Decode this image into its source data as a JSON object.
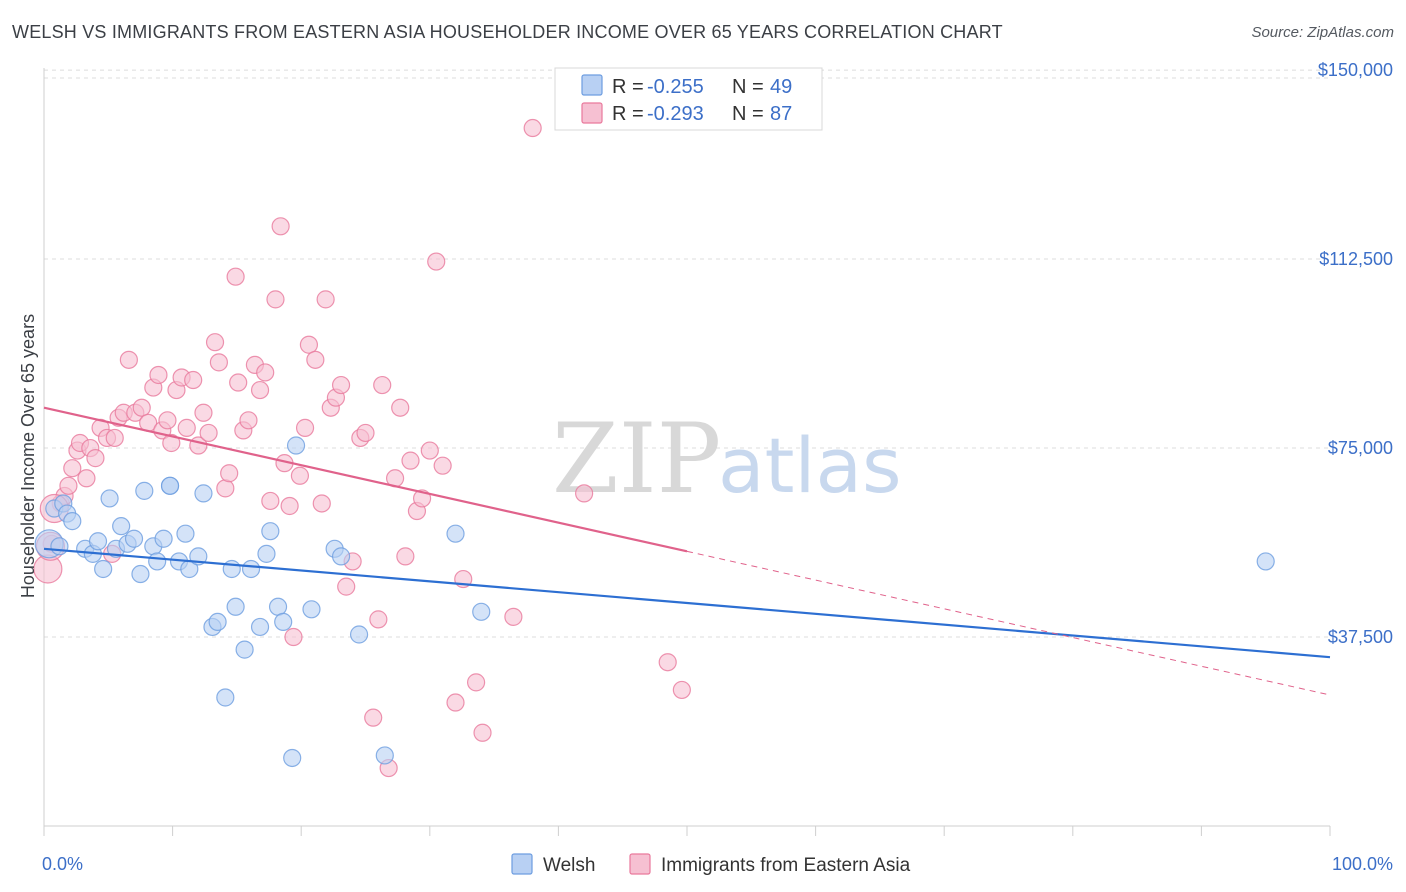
{
  "title": "WELSH VS IMMIGRANTS FROM EASTERN ASIA HOUSEHOLDER INCOME OVER 65 YEARS CORRELATION CHART",
  "source": "Source: ZipAtlas.com",
  "watermark": {
    "zip": "ZIP",
    "atlas": "atlas"
  },
  "colors": {
    "welsh": "#6d9de0",
    "welsh_fill": "#b8d0f3",
    "eastern_asia": "#e9799c",
    "eastern_asia_fill": "#f6c0d2",
    "axis_text": "#3c6fc8",
    "welsh_line": "#2d6fd2",
    "asia_line": "#e0628b"
  },
  "legend": {
    "welsh": {
      "r_label": "R = ",
      "r": "-0.255",
      "n_label": "N = ",
      "n": "49"
    },
    "asia": {
      "r_label": "R = ",
      "r": "-0.293",
      "n_label": "N = ",
      "n": "87"
    }
  },
  "chart_data": {
    "type": "scatter",
    "ylabel": "Householder Income Over 65 years",
    "x_tick_labels": [
      "0.0%",
      "100.0%"
    ],
    "xlim": [
      0,
      100
    ],
    "ylim": [
      0,
      152000
    ],
    "y_ticks": [
      37500,
      75000,
      112500,
      150000
    ],
    "y_tick_labels": [
      "$37,500",
      "$75,000",
      "$112,500",
      "$150,000"
    ],
    "grid": true,
    "legend_position": "top-center",
    "series": [
      {
        "name": "Welsh",
        "trend": {
          "x": [
            0,
            100
          ],
          "y": [
            55000,
            33500
          ]
        },
        "points": [
          [
            0.4,
            56000
          ],
          [
            0.8,
            63000
          ],
          [
            1.5,
            64000
          ],
          [
            1.8,
            62000
          ],
          [
            2.2,
            60500
          ],
          [
            3.2,
            55000
          ],
          [
            3.8,
            54000
          ],
          [
            4.2,
            56500
          ],
          [
            4.6,
            51000
          ],
          [
            5.1,
            65000
          ],
          [
            5.6,
            55000
          ],
          [
            6.0,
            59500
          ],
          [
            6.5,
            56000
          ],
          [
            7.0,
            57000
          ],
          [
            7.5,
            50000
          ],
          [
            7.8,
            66500
          ],
          [
            8.5,
            55500
          ],
          [
            8.8,
            52500
          ],
          [
            9.3,
            57000
          ],
          [
            9.8,
            67500
          ],
          [
            10.5,
            52500
          ],
          [
            11.0,
            58000
          ],
          [
            11.3,
            51000
          ],
          [
            12.0,
            53500
          ],
          [
            12.4,
            66000
          ],
          [
            13.1,
            39500
          ],
          [
            13.5,
            40500
          ],
          [
            14.1,
            25500
          ],
          [
            14.6,
            51000
          ],
          [
            14.9,
            43500
          ],
          [
            15.6,
            35000
          ],
          [
            16.1,
            51000
          ],
          [
            16.8,
            39500
          ],
          [
            17.3,
            54000
          ],
          [
            17.6,
            58500
          ],
          [
            18.2,
            43500
          ],
          [
            18.6,
            40500
          ],
          [
            19.3,
            13500
          ],
          [
            19.6,
            75500
          ],
          [
            20.8,
            43000
          ],
          [
            22.6,
            55000
          ],
          [
            23.1,
            53500
          ],
          [
            24.5,
            38000
          ],
          [
            26.5,
            14000
          ],
          [
            32.0,
            58000
          ],
          [
            34.0,
            42500
          ],
          [
            95.0,
            52500
          ],
          [
            1.2,
            55500
          ],
          [
            9.8,
            67500
          ]
        ]
      },
      {
        "name": "Immigrants from Eastern Asia",
        "trend": {
          "x": [
            0,
            50
          ],
          "y": [
            83000,
            54500
          ]
        },
        "trend_dashed": {
          "x": [
            50,
            100
          ],
          "y": [
            54500,
            26000
          ]
        },
        "points": [
          [
            0.3,
            51000
          ],
          [
            0.6,
            56000
          ],
          [
            1.3,
            64000
          ],
          [
            1.6,
            65500
          ],
          [
            1.9,
            67500
          ],
          [
            2.2,
            71000
          ],
          [
            2.6,
            74500
          ],
          [
            2.8,
            76000
          ],
          [
            3.3,
            69000
          ],
          [
            3.6,
            75000
          ],
          [
            4.0,
            73000
          ],
          [
            4.4,
            79000
          ],
          [
            4.9,
            77000
          ],
          [
            5.3,
            54000
          ],
          [
            5.5,
            77000
          ],
          [
            5.8,
            81000
          ],
          [
            6.2,
            82000
          ],
          [
            6.6,
            92500
          ],
          [
            7.1,
            82000
          ],
          [
            7.6,
            83000
          ],
          [
            8.1,
            80000
          ],
          [
            8.5,
            87000
          ],
          [
            8.9,
            89500
          ],
          [
            9.2,
            78500
          ],
          [
            9.6,
            80500
          ],
          [
            9.9,
            76000
          ],
          [
            10.3,
            86500
          ],
          [
            10.7,
            89000
          ],
          [
            11.1,
            79000
          ],
          [
            11.6,
            88500
          ],
          [
            12.0,
            75500
          ],
          [
            12.4,
            82000
          ],
          [
            12.8,
            78000
          ],
          [
            13.3,
            96000
          ],
          [
            13.6,
            92000
          ],
          [
            14.1,
            67000
          ],
          [
            14.4,
            70000
          ],
          [
            14.9,
            109000
          ],
          [
            15.1,
            88000
          ],
          [
            15.5,
            78500
          ],
          [
            15.9,
            80500
          ],
          [
            16.4,
            91500
          ],
          [
            16.8,
            86500
          ],
          [
            17.2,
            90000
          ],
          [
            17.6,
            64500
          ],
          [
            18.0,
            104500
          ],
          [
            18.4,
            119000
          ],
          [
            18.7,
            72000
          ],
          [
            19.1,
            63500
          ],
          [
            19.4,
            37500
          ],
          [
            19.9,
            69500
          ],
          [
            20.3,
            79000
          ],
          [
            20.6,
            95500
          ],
          [
            21.1,
            92500
          ],
          [
            21.6,
            64000
          ],
          [
            21.9,
            104500
          ],
          [
            22.3,
            83000
          ],
          [
            22.7,
            85000
          ],
          [
            23.1,
            87500
          ],
          [
            23.5,
            47500
          ],
          [
            24.0,
            52500
          ],
          [
            24.6,
            77000
          ],
          [
            25.0,
            78000
          ],
          [
            25.6,
            21500
          ],
          [
            26.0,
            41000
          ],
          [
            26.3,
            87500
          ],
          [
            26.8,
            11500
          ],
          [
            27.3,
            69000
          ],
          [
            27.7,
            83000
          ],
          [
            28.1,
            53500
          ],
          [
            28.5,
            72500
          ],
          [
            29.0,
            62500
          ],
          [
            29.4,
            65000
          ],
          [
            30.0,
            74500
          ],
          [
            30.5,
            112000
          ],
          [
            31.0,
            71500
          ],
          [
            32.0,
            24500
          ],
          [
            32.6,
            49000
          ],
          [
            33.6,
            28500
          ],
          [
            34.1,
            18500
          ],
          [
            36.5,
            41500
          ],
          [
            38.0,
            138500
          ],
          [
            42.0,
            66000
          ],
          [
            48.5,
            32500
          ],
          [
            49.6,
            27000
          ],
          [
            0.8,
            63000
          ],
          [
            0.5,
            55500
          ]
        ]
      }
    ]
  },
  "bottom_legend": {
    "welsh": "Welsh",
    "asia": "Immigrants from Eastern Asia"
  }
}
